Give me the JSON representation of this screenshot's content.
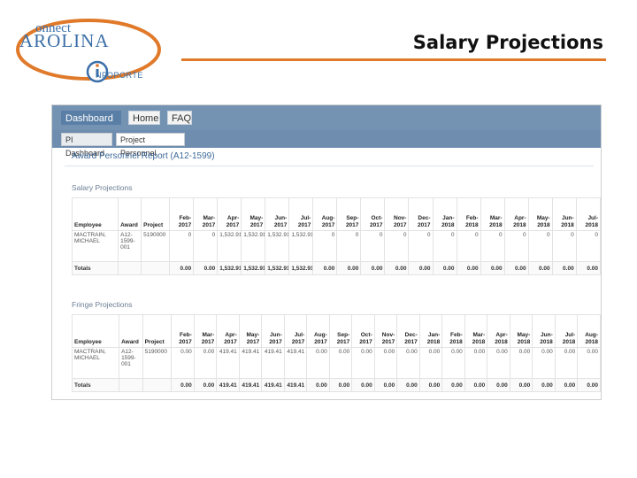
{
  "slide": {
    "title": "Salary Projections"
  },
  "logo": {
    "line1": "onnect",
    "line2": "AROLINA",
    "line3": "NFOPORTE",
    "accent": "#e07a2a",
    "brand": "#3b6fa8"
  },
  "nav": {
    "tabs": [
      "Dashboard",
      "Home",
      "FAQ"
    ],
    "subtabs": [
      "PI Dashboard",
      "Project Personnel"
    ]
  },
  "report": {
    "title": "Award Personnel Report (A12-1599)"
  },
  "salary": {
    "label": "Salary Projections",
    "headers": [
      "Employee",
      "Award",
      "Project",
      "Feb-2017",
      "Mar-2017",
      "Apr-2017",
      "May-2017",
      "Jun-2017",
      "Jul-2017",
      "Aug-2017",
      "Sep-2017",
      "Oct-2017",
      "Nov-2017",
      "Dec-2017",
      "Jan-2018",
      "Feb-2018",
      "Mar-2018",
      "Apr-2018",
      "May-2018",
      "Jun-2018",
      "Jul-2018"
    ],
    "row": [
      "MACTRAIN, MICHAEL",
      "A12-1599-001",
      "5190000",
      "0",
      "0",
      "1,532.91",
      "1,532.91",
      "1,532.91",
      "1,532.91",
      "0",
      "0",
      "0",
      "0",
      "0",
      "0",
      "0",
      "0",
      "0",
      "0",
      "0",
      "0"
    ],
    "totals": [
      "Totals",
      "",
      "",
      "0.00",
      "0.00",
      "1,532.91",
      "1,532.91",
      "1,532.91",
      "1,532.91",
      "0.00",
      "0.00",
      "0.00",
      "0.00",
      "0.00",
      "0.00",
      "0.00",
      "0.00",
      "0.00",
      "0.00",
      "0.00",
      "0.00"
    ]
  },
  "fringe": {
    "label": "Fringe Projections",
    "headers": [
      "Employee",
      "Award",
      "Project",
      "Feb-2017",
      "Mar-2017",
      "Apr-2017",
      "May-2017",
      "Jun-2017",
      "Jul-2017",
      "Aug-2017",
      "Sep-2017",
      "Oct-2017",
      "Nov-2017",
      "Dec-2017",
      "Jan-2018",
      "Feb-2018",
      "Mar-2018",
      "Apr-2018",
      "May-2018",
      "Jun-2018",
      "Jul-2018",
      "Aug-2018"
    ],
    "row": [
      "MACTRAIN, MICHAEL",
      "A12-1599-001",
      "5190000",
      "0.00",
      "0.00",
      "419.41",
      "419.41",
      "419.41",
      "419.41",
      "0.00",
      "0.00",
      "0.00",
      "0.00",
      "0.00",
      "0.00",
      "0.00",
      "0.00",
      "0.00",
      "0.00",
      "0.00",
      "0.00",
      "0.00"
    ],
    "totals": [
      "Totals",
      "",
      "",
      "0.00",
      "0.00",
      "419.41",
      "419.41",
      "419.41",
      "419.41",
      "0.00",
      "0.00",
      "0.00",
      "0.00",
      "0.00",
      "0.00",
      "0.00",
      "0.00",
      "0.00",
      "0.00",
      "0.00",
      "0.00",
      "0.00"
    ]
  }
}
